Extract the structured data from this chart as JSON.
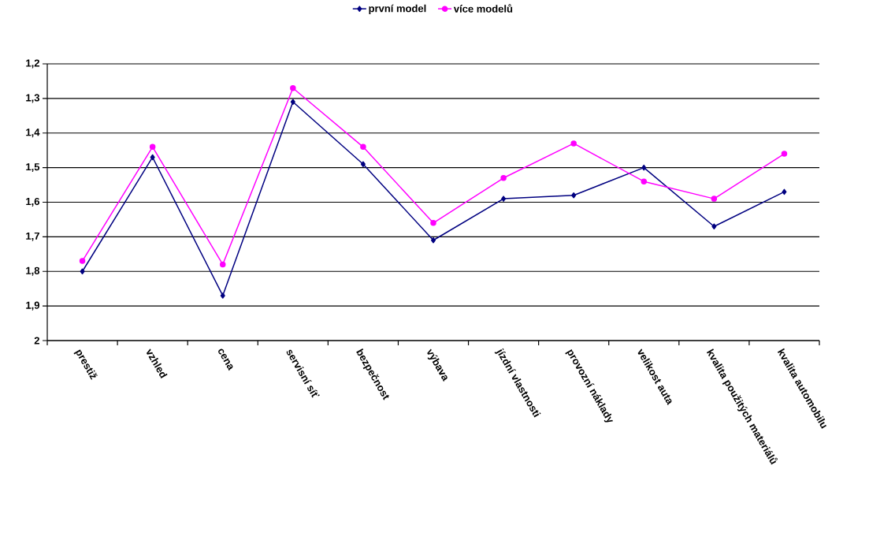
{
  "chart_data": {
    "type": "line",
    "categories": [
      "prestiž",
      "vzhled",
      "cena",
      "servisní síť",
      "bezpečnost",
      "výbava",
      "jízdní vlastnosti",
      "provozní náklady",
      "velikost auta",
      "kvalita použitých materiálů",
      "kvalita automobilu"
    ],
    "series": [
      {
        "name": "první model",
        "color": "#000080",
        "marker": "diamond",
        "values": [
          1.8,
          1.47,
          1.87,
          1.31,
          1.49,
          1.71,
          1.59,
          1.58,
          1.5,
          1.67,
          1.57
        ]
      },
      {
        "name": "více modelů",
        "color": "#ff00ff",
        "marker": "circle",
        "values": [
          1.77,
          1.44,
          1.78,
          1.27,
          1.44,
          1.66,
          1.53,
          1.43,
          1.54,
          1.59,
          1.46
        ]
      }
    ],
    "ylim": [
      2,
      1.2
    ],
    "yticks": [
      {
        "value": 1.2,
        "label": "1,2"
      },
      {
        "value": 1.3,
        "label": "1,3"
      },
      {
        "value": 1.4,
        "label": "1,4"
      },
      {
        "value": 1.5,
        "label": "1,5"
      },
      {
        "value": 1.6,
        "label": "1,6"
      },
      {
        "value": 1.7,
        "label": "1,7"
      },
      {
        "value": 1.8,
        "label": "1,8"
      },
      {
        "value": 1.9,
        "label": "1,9"
      },
      {
        "value": 2,
        "label": "2"
      }
    ],
    "grid": "y",
    "legend": "top"
  }
}
